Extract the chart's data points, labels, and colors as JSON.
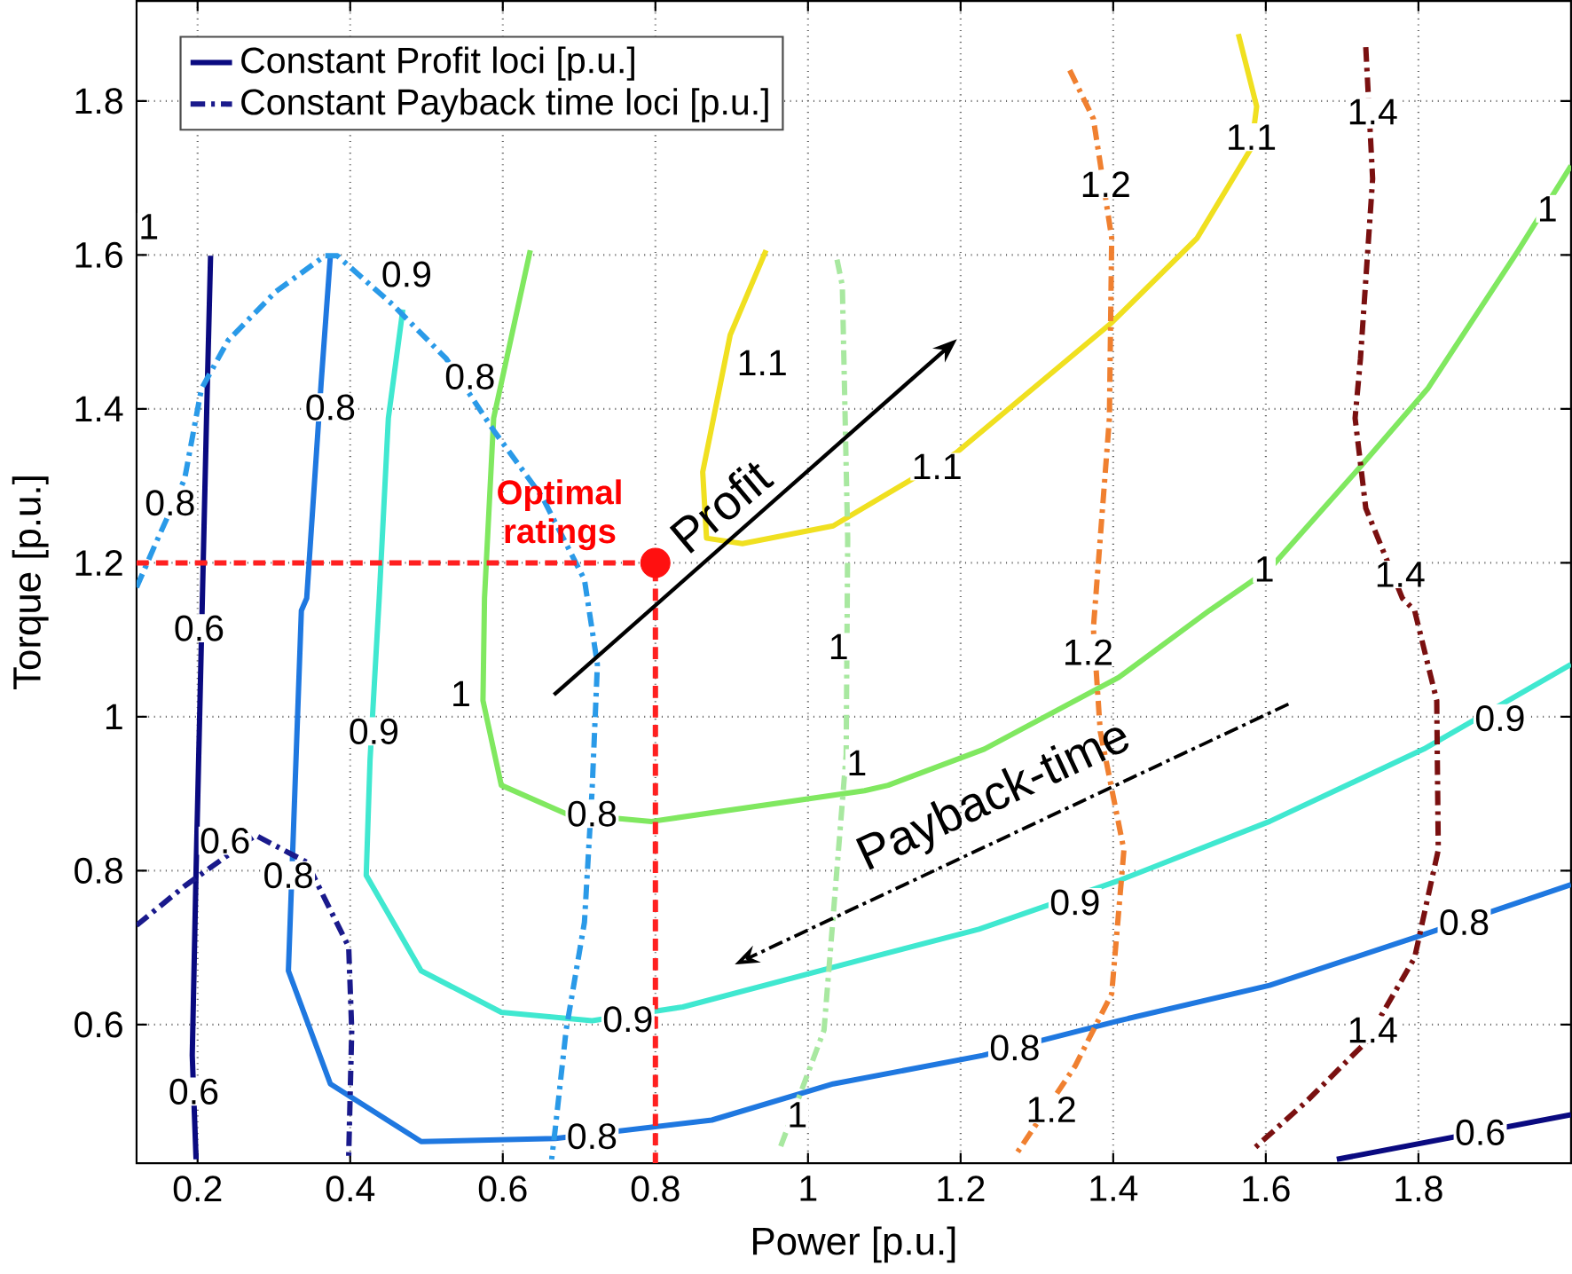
{
  "chart_data": {
    "type": "line",
    "xlabel": "Power [p.u.]",
    "ylabel": "Torque [p.u.]",
    "xlim": [
      0.12,
      2.0
    ],
    "ylim": [
      0.42,
      1.93
    ],
    "xticks": [
      0.2,
      0.4,
      0.6,
      0.8,
      1,
      1.2,
      1.4,
      1.6,
      1.8
    ],
    "yticks": [
      0.6,
      0.8,
      1,
      1.2,
      1.4,
      1.6,
      1.8
    ],
    "grid": true,
    "legend": "top left",
    "series": [
      {
        "name": "Constant Profit loci [p.u.]",
        "color": "#0a0a80",
        "line_style": "solid",
        "x": [
          0.217,
          0.212,
          0.205,
          0.198,
          0.193,
          0.198,
          null,
          1.693,
          2.0
        ],
        "values": [
          1.599,
          1.4,
          1.1,
          0.8,
          0.56,
          0.425,
          null,
          0.425,
          0.483
        ]
      },
      {
        "color": "#1f78e0",
        "line_style": "solid",
        "x": [
          0.374,
          0.362,
          0.343,
          0.336,
          0.319,
          0.374,
          0.493,
          0.669,
          0.874,
          1.033,
          1.229,
          1.407,
          1.605,
          1.807,
          2.0
        ],
        "values": [
          1.599,
          1.435,
          1.154,
          1.138,
          0.67,
          0.523,
          0.448,
          0.452,
          0.476,
          0.523,
          0.56,
          0.605,
          0.651,
          0.717,
          0.782
        ]
      },
      {
        "color": "#40e8d0",
        "line_style": "solid",
        "x": [
          0.469,
          0.45,
          0.438,
          0.426,
          0.421,
          0.493,
          0.598,
          0.717,
          0.836,
          1.081,
          1.224,
          1.407,
          1.605,
          1.807,
          2.0
        ],
        "values": [
          1.529,
          1.388,
          1.154,
          0.944,
          0.794,
          0.67,
          0.616,
          0.605,
          0.623,
          0.687,
          0.724,
          0.787,
          0.864,
          0.958,
          1.068
        ]
      },
      {
        "color": "#80e860",
        "line_style": "solid",
        "x": [
          0.636,
          0.588,
          0.576,
          0.574,
          0.598,
          0.683,
          0.795,
          1.074,
          1.105,
          1.231,
          1.407,
          1.526,
          1.605,
          1.724,
          1.812,
          1.931,
          2.0
        ],
        "values": [
          1.606,
          1.388,
          1.154,
          1.021,
          0.911,
          0.874,
          0.864,
          0.904,
          0.911,
          0.958,
          1.051,
          1.138,
          1.192,
          1.325,
          1.426,
          1.606,
          1.716
        ]
      },
      {
        "color": "#f0e020",
        "line_style": "solid",
        "x": [
          0.945,
          0.898,
          0.862,
          0.867,
          0.914,
          1.033,
          1.193,
          1.398,
          1.51,
          1.581,
          1.588,
          1.564
        ],
        "values": [
          1.606,
          1.496,
          1.318,
          1.232,
          1.225,
          1.248,
          1.342,
          1.512,
          1.622,
          1.739,
          1.793,
          1.887
        ]
      },
      {
        "name": "Constant Payback time loci [p.u.]",
        "color": "#1a1a8c",
        "line_style": "dashdot",
        "x": [
          0.12,
          0.183,
          0.276,
          0.343,
          0.398,
          0.402,
          0.398
        ],
        "values": [
          0.729,
          0.78,
          0.846,
          0.811,
          0.701,
          0.593,
          0.429
        ]
      },
      {
        "color": "#2a9ae8",
        "line_style": "dashdot",
        "x": [
          0.12,
          0.145,
          0.183,
          0.205,
          0.24,
          0.302,
          0.367,
          0.383,
          0.455,
          0.526,
          0.588,
          0.652,
          0.707,
          0.724,
          0.717,
          0.707,
          0.683,
          0.669,
          0.664
        ],
        "values": [
          1.168,
          1.225,
          1.309,
          1.426,
          1.489,
          1.552,
          1.599,
          1.599,
          1.536,
          1.465,
          1.372,
          1.285,
          1.178,
          1.068,
          0.904,
          0.733,
          0.593,
          0.467,
          0.425
        ]
      },
      {
        "color": "#a8e8a0",
        "line_style": "dashdot",
        "x": [
          1.038,
          1.045,
          1.052,
          1.05,
          1.021,
          0.962
        ],
        "values": [
          1.594,
          1.56,
          1.232,
          0.951,
          0.593,
          0.436
        ]
      },
      {
        "color": "#f08030",
        "line_style": "dashdot",
        "x": [
          1.343,
          1.374,
          1.398,
          1.395,
          1.374,
          1.383,
          1.414,
          1.398,
          1.35,
          1.271
        ],
        "values": [
          1.84,
          1.777,
          1.622,
          1.388,
          1.115,
          0.981,
          0.827,
          0.64,
          0.546,
          0.429
        ]
      },
      {
        "color": "#7a1010",
        "line_style": "dashdot",
        "x": [
          1.731,
          1.74,
          1.724,
          1.717,
          1.731,
          1.779,
          1.795,
          1.824,
          1.826,
          1.795,
          1.731,
          1.652,
          1.581
        ],
        "values": [
          1.87,
          1.699,
          1.465,
          1.388,
          1.271,
          1.154,
          1.138,
          1.021,
          0.827,
          0.687,
          0.577,
          0.499,
          0.436
        ]
      },
      {
        "color": "#ff2020",
        "line_style": "dashed",
        "x": [
          0.12,
          0.8,
          0.8
        ],
        "values": [
          1.2,
          1.2,
          0.42
        ]
      },
      {
        "type": "scatter",
        "color": "#ff1010",
        "x": [
          0.8
        ],
        "values": [
          1.2
        ]
      }
    ],
    "annotations": [
      {
        "text": "0.6",
        "x": 0.202,
        "y": 1.115
      },
      {
        "text": "0.6",
        "x": 0.195,
        "y": 0.513
      },
      {
        "text": "0.6",
        "x": 1.881,
        "y": 0.46
      },
      {
        "text": "0.6",
        "x": 0.236,
        "y": 0.839
      },
      {
        "text": "0.8",
        "x": 0.374,
        "y": 1.402
      },
      {
        "text": "0.8",
        "x": 0.319,
        "y": 0.794
      },
      {
        "text": "0.8",
        "x": 0.717,
        "y": 0.455
      },
      {
        "text": "0.8",
        "x": 1.271,
        "y": 0.57
      },
      {
        "text": "0.8",
        "x": 1.86,
        "y": 0.733
      },
      {
        "text": "0.8",
        "x": 0.557,
        "y": 1.442
      },
      {
        "text": "0.8",
        "x": 0.164,
        "y": 1.278
      },
      {
        "text": "0.8",
        "x": 0.717,
        "y": 0.874
      },
      {
        "text": "0.9",
        "x": 0.474,
        "y": 1.575
      },
      {
        "text": "0.9",
        "x": 0.431,
        "y": 0.981
      },
      {
        "text": "0.9",
        "x": 0.764,
        "y": 0.607
      },
      {
        "text": "0.9",
        "x": 1.35,
        "y": 0.759
      },
      {
        "text": "0.9",
        "x": 1.907,
        "y": 0.998
      },
      {
        "text": "1",
        "x": 0.545,
        "y": 1.03
      },
      {
        "text": "1",
        "x": 1.064,
        "y": 0.94
      },
      {
        "text": "1",
        "x": 1.598,
        "y": 1.192
      },
      {
        "text": "1",
        "x": 1.969,
        "y": 1.66
      },
      {
        "text": "1",
        "x": 1.04,
        "y": 1.091
      },
      {
        "text": "1",
        "x": 0.986,
        "y": 0.483
      },
      {
        "text": "1",
        "x": 0.136,
        "y": 1.637
      },
      {
        "text": "1.1",
        "x": 0.94,
        "y": 1.46
      },
      {
        "text": "1.1",
        "x": 1.169,
        "y": 1.325
      },
      {
        "text": "1.1",
        "x": 1.581,
        "y": 1.753
      },
      {
        "text": "1.2",
        "x": 1.39,
        "y": 1.692
      },
      {
        "text": "1.2",
        "x": 1.367,
        "y": 1.084
      },
      {
        "text": "1.2",
        "x": 1.319,
        "y": 0.49
      },
      {
        "text": "1.4",
        "x": 1.74,
        "y": 1.786
      },
      {
        "text": "1.4",
        "x": 1.776,
        "y": 1.185
      },
      {
        "text": "1.4",
        "x": 1.74,
        "y": 0.593
      },
      {
        "text": "Optimal ratings",
        "x": 0.8,
        "y": 1.2
      },
      "Profit",
      "Payback-time"
    ]
  }
}
